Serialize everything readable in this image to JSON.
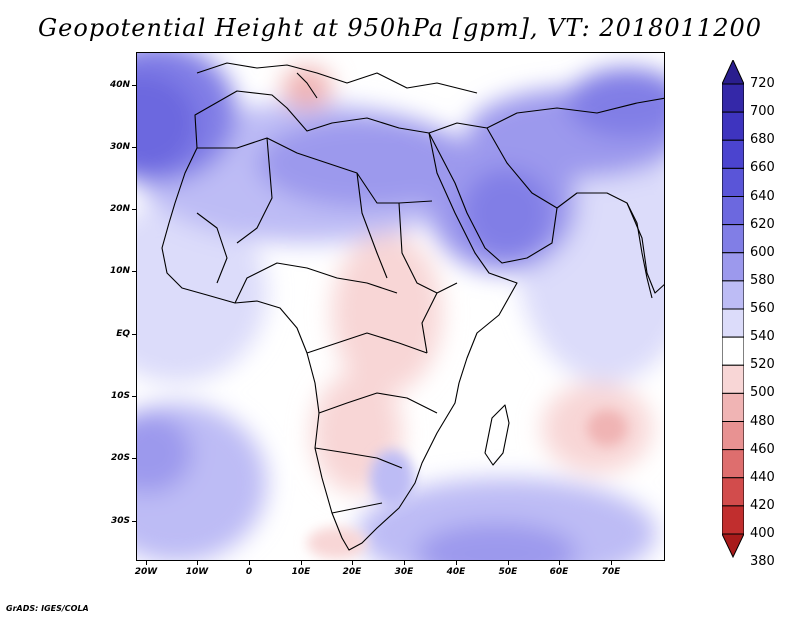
{
  "title": "Geopotential Height at 950hPa [gpm], VT: 2018011200",
  "map": {
    "lat_labels": [
      "40N",
      "30N",
      "20N",
      "10N",
      "EQ",
      "10S",
      "20S",
      "30S"
    ],
    "lon_labels": [
      "20W",
      "10W",
      "0",
      "10E",
      "20E",
      "30E",
      "40E",
      "50E",
      "60E",
      "70E"
    ]
  },
  "colorbar": {
    "levels": [
      "720",
      "700",
      "680",
      "660",
      "640",
      "620",
      "600",
      "580",
      "560",
      "540",
      "520",
      "500",
      "480",
      "460",
      "440",
      "420",
      "400",
      "380"
    ],
    "colors": [
      "#2a1e8e",
      "#3428a8",
      "#3e34bf",
      "#4b44cf",
      "#5a55d8",
      "#6c68df",
      "#817ee6",
      "#9c99ed",
      "#bdbcf5",
      "#dcdcfa",
      "#ffffff",
      "#f8d6d6",
      "#f0b4b4",
      "#e89292",
      "#de6e6e",
      "#d24c4c",
      "#c12e2e",
      "#a81b1b"
    ]
  },
  "credit": "GrADS: IGES/COLA"
}
